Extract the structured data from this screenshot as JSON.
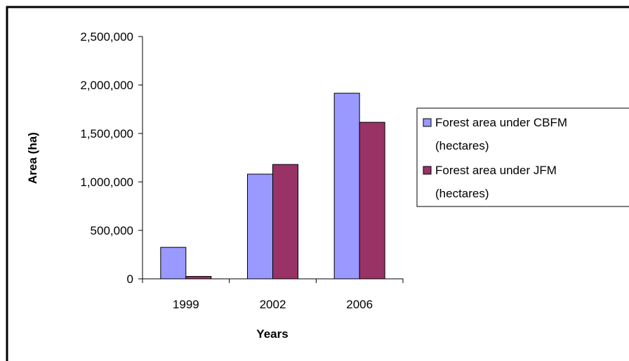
{
  "chart_data": {
    "type": "bar",
    "categories": [
      "1999",
      "2002",
      "2006"
    ],
    "series": [
      {
        "name": "Forest area under CBFM (hectares)",
        "name_lines": [
          "Forest area under CBFM",
          "(hectares)"
        ],
        "color": "#9999ff",
        "values": [
          325000,
          1080000,
          1915000
        ]
      },
      {
        "name": "Forest area under JFM (hectares)",
        "name_lines": [
          "Forest area under JFM",
          "(hectares)"
        ],
        "color": "#993366",
        "values": [
          25000,
          1180000,
          1615000
        ]
      }
    ],
    "xlabel": "Years",
    "ylabel": "Area (ha)",
    "ylim": [
      0,
      2500000
    ],
    "yticks": [
      0,
      500000,
      1000000,
      1500000,
      2000000,
      2500000
    ],
    "ytick_labels": [
      "0",
      "500,000",
      "1,000,000",
      "1,500,000",
      "2,000,000",
      "2,500,000"
    ],
    "grid": false,
    "legend_position": "right"
  }
}
